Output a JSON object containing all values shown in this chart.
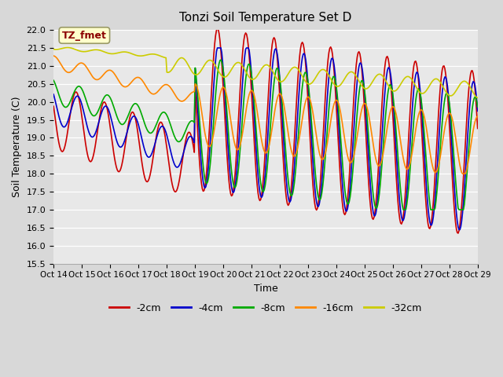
{
  "title": "Tonzi Soil Temperature Set D",
  "xlabel": "Time",
  "ylabel": "Soil Temperature (C)",
  "ylim": [
    15.5,
    22.0
  ],
  "yticks": [
    15.5,
    16.0,
    16.5,
    17.0,
    17.5,
    18.0,
    18.5,
    19.0,
    19.5,
    20.0,
    20.5,
    21.0,
    21.5,
    22.0
  ],
  "xtick_labels": [
    "Oct 14",
    "Oct 15",
    "Oct 16",
    "Oct 17",
    "Oct 18",
    "Oct 19",
    "Oct 20",
    "Oct 21",
    "Oct 22",
    "Oct 23",
    "Oct 24",
    "Oct 25",
    "Oct 26",
    "Oct 27",
    "Oct 28",
    "Oct 29"
  ],
  "colors": {
    "-2cm": "#cc0000",
    "-4cm": "#0000cc",
    "-8cm": "#00aa00",
    "-16cm": "#ff8800",
    "-32cm": "#cccc00"
  },
  "legend_labels": [
    "-2cm",
    "-4cm",
    "-8cm",
    "-16cm",
    "-32cm"
  ],
  "fig_bg_color": "#d8d8d8",
  "plot_bg_color": "#e8e8e8",
  "label_box_color": "#ffffcc",
  "label_box_text": "TZ_fmet",
  "n_points": 480,
  "n_days": 15
}
